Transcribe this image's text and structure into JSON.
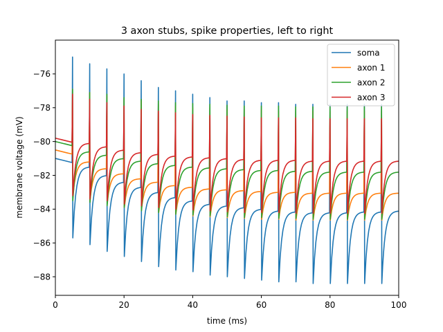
{
  "chart_data": {
    "type": "line",
    "title": "3 axon stubs, spike properties, left to right",
    "xlabel": "time (ms)",
    "ylabel": "membrane voltage (mV)",
    "xlim": [
      0,
      100
    ],
    "ylim": [
      -89.1,
      -74.0
    ],
    "xticks": [
      0,
      20,
      40,
      60,
      80,
      100
    ],
    "xtick_labels": [
      "0",
      "20",
      "40",
      "60",
      "80",
      "100"
    ],
    "yticks": [
      -88,
      -86,
      -84,
      -82,
      -80,
      -78,
      -76
    ],
    "ytick_labels": [
      "−88",
      "−86",
      "−84",
      "−82",
      "−80",
      "−78",
      "−76"
    ],
    "grid": false,
    "legend_position": "top-right",
    "spike_times": [
      5,
      10,
      15,
      20,
      25,
      30,
      35,
      40,
      45,
      50,
      55,
      60,
      65,
      70,
      75,
      80,
      85,
      90,
      95
    ],
    "series": [
      {
        "name": "soma",
        "color": "#1f77b4",
        "baseline": [
          -81.5,
          -82.0,
          -82.4,
          -82.7,
          -83.0,
          -83.3,
          -83.5,
          -83.7,
          -83.8,
          -83.9,
          -84.0,
          -84.1,
          -84.15,
          -84.2,
          -84.2,
          -84.2,
          -84.15,
          -84.15,
          -84.1
        ],
        "peak": [
          -75.0,
          -75.4,
          -75.7,
          -76.0,
          -76.4,
          -76.8,
          -77.0,
          -77.2,
          -77.4,
          -77.6,
          -77.6,
          -77.7,
          -77.7,
          -77.8,
          -77.8,
          -77.8,
          -77.8,
          -77.8,
          -77.8
        ],
        "trough": [
          -85.7,
          -86.1,
          -86.5,
          -86.8,
          -87.1,
          -87.4,
          -87.6,
          -87.7,
          -87.9,
          -88.0,
          -88.1,
          -88.2,
          -88.3,
          -88.3,
          -88.4,
          -88.4,
          -88.4,
          -88.4,
          -88.4
        ],
        "start": -81.0
      },
      {
        "name": "axon 1",
        "color": "#ff7f0e",
        "baseline": [
          -81.2,
          -81.6,
          -81.9,
          -82.2,
          -82.4,
          -82.6,
          -82.7,
          -82.8,
          -82.85,
          -82.9,
          -82.95,
          -83.0,
          -83.0,
          -83.05,
          -83.05,
          -83.05,
          -83.05,
          -83.05,
          -83.05
        ],
        "peak": [
          -76.9,
          -77.1,
          -77.3,
          -77.5,
          -77.6,
          -77.8,
          -77.9,
          -78.0,
          -78.0,
          -78.1,
          -78.1,
          -78.1,
          -78.2,
          -78.2,
          -78.2,
          -78.2,
          -78.2,
          -78.2,
          -78.2
        ],
        "trough": [
          -83.3,
          -83.5,
          -83.7,
          -83.9,
          -84.0,
          -84.2,
          -84.3,
          -84.4,
          -84.45,
          -84.5,
          -84.55,
          -84.6,
          -84.6,
          -84.65,
          -84.65,
          -84.65,
          -84.65,
          -84.65,
          -84.65
        ],
        "start": -80.5
      },
      {
        "name": "axon 2",
        "color": "#2ca02c",
        "baseline": [
          -80.6,
          -80.8,
          -81.0,
          -81.15,
          -81.3,
          -81.4,
          -81.5,
          -81.55,
          -81.6,
          -81.65,
          -81.7,
          -81.7,
          -81.75,
          -81.75,
          -81.8,
          -81.8,
          -81.8,
          -81.8,
          -81.8
        ],
        "peak": [
          -76.9,
          -77.1,
          -77.2,
          -77.4,
          -77.5,
          -77.6,
          -77.7,
          -77.75,
          -77.8,
          -77.85,
          -77.9,
          -77.9,
          -77.9,
          -77.95,
          -77.95,
          -77.95,
          -77.95,
          -77.95,
          -77.95
        ],
        "trough": [
          -83.5,
          -83.6,
          -83.8,
          -83.9,
          -84.1,
          -84.2,
          -84.3,
          -84.35,
          -84.4,
          -84.45,
          -84.5,
          -84.5,
          -84.55,
          -84.55,
          -84.6,
          -84.6,
          -84.6,
          -84.6,
          -84.6
        ],
        "start": -80.0
      },
      {
        "name": "axon 3",
        "color": "#d62728",
        "baseline": [
          -80.1,
          -80.3,
          -80.5,
          -80.65,
          -80.75,
          -80.85,
          -80.9,
          -80.95,
          -81.0,
          -81.05,
          -81.1,
          -81.1,
          -81.1,
          -81.15,
          -81.15,
          -81.15,
          -81.15,
          -81.15,
          -81.15
        ],
        "peak": [
          -77.2,
          -77.5,
          -77.7,
          -77.9,
          -78.1,
          -78.2,
          -78.3,
          -78.4,
          -78.45,
          -78.5,
          -78.55,
          -78.6,
          -78.6,
          -78.6,
          -78.65,
          -78.65,
          -78.65,
          -78.65,
          -78.65
        ],
        "trough": [
          -83.2,
          -83.4,
          -83.5,
          -83.7,
          -83.8,
          -83.9,
          -84.0,
          -84.05,
          -84.1,
          -84.15,
          -84.2,
          -84.2,
          -84.2,
          -84.25,
          -84.25,
          -84.25,
          -84.25,
          -84.25,
          -84.25
        ],
        "start": -79.8
      }
    ]
  }
}
